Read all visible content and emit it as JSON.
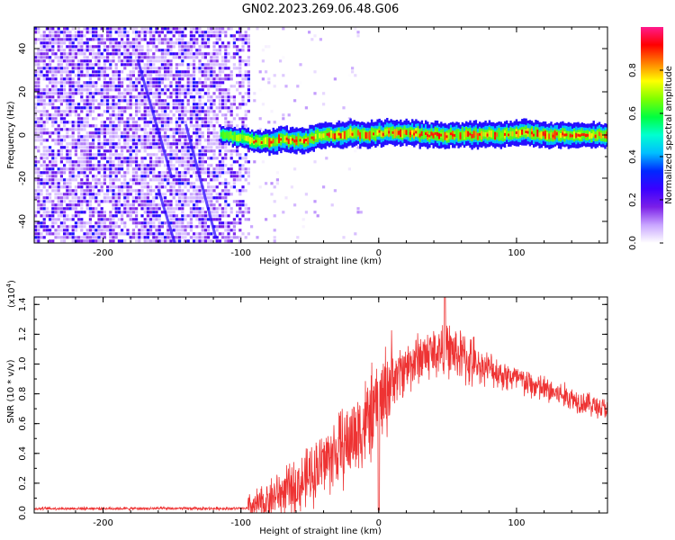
{
  "figure": {
    "title": "GN02.2023.269.06.48.G06"
  },
  "chart_data": [
    {
      "type": "heatmap",
      "xlabel": "Height of straight line (km)",
      "ylabel": "Frequency (Hz)",
      "xlim": [
        -250,
        166
      ],
      "ylim": [
        -50,
        50
      ],
      "xticks": [
        -200,
        -100,
        0,
        100
      ],
      "yticks": [
        -40,
        -20,
        0,
        20,
        40
      ],
      "colorbar": {
        "label": "Normalized spectral amplitude",
        "range": [
          0,
          1
        ],
        "ticks": [
          "0.0",
          "0.2",
          "0.4",
          "0.6",
          "0.8"
        ],
        "colormap": [
          "#ffffff",
          "#c9a6ff",
          "#7b1fe8",
          "#3a00ff",
          "#0028ff",
          "#00bfff",
          "#00ffd0",
          "#00ff40",
          "#7fff00",
          "#ffff00",
          "#ff8000",
          "#ff0000",
          "#ff1a8c"
        ]
      },
      "features": {
        "noise_region_x": [
          -250,
          -95
        ],
        "carrier_start_x": -115,
        "carrier_end_x": 166,
        "carrier_freq_track": [
          [
            -115,
            0
          ],
          [
            -100,
            -1
          ],
          [
            -90,
            -3
          ],
          [
            -80,
            -3
          ],
          [
            -70,
            -2
          ],
          [
            -60,
            -3
          ],
          [
            -50,
            -2
          ],
          [
            -40,
            0
          ],
          [
            -30,
            0
          ],
          [
            -20,
            1
          ],
          [
            -10,
            0
          ],
          [
            0,
            1
          ],
          [
            20,
            1
          ],
          [
            40,
            0
          ],
          [
            60,
            0
          ],
          [
            80,
            0
          ],
          [
            100,
            1
          ],
          [
            120,
            0
          ],
          [
            140,
            0
          ],
          [
            166,
            0
          ]
        ],
        "carrier_peak_amplitude": 0.9
      }
    },
    {
      "type": "line",
      "xlabel": "Height of straight line (km)",
      "ylabel": "SNR (10 * v/v)",
      "scale_label": "(x10",
      "scale_exponent": "4",
      "scale_suffix": ")",
      "xlim": [
        -250,
        166
      ],
      "ylim": [
        0,
        1.45
      ],
      "xticks": [
        -200,
        -100,
        0,
        100
      ],
      "yticks": [
        "0.0",
        "0.2",
        "0.4",
        "0.6",
        "0.8",
        "1.0",
        "1.2",
        "1.4"
      ],
      "series": [
        {
          "color": "#ee3333",
          "trend": [
            [
              -250,
              0.03
            ],
            [
              -200,
              0.03
            ],
            [
              -150,
              0.03
            ],
            [
              -110,
              0.03
            ],
            [
              -95,
              0.03
            ],
            [
              -85,
              0.06
            ],
            [
              -75,
              0.12
            ],
            [
              -65,
              0.15
            ],
            [
              -55,
              0.2
            ],
            [
              -45,
              0.3
            ],
            [
              -35,
              0.38
            ],
            [
              -25,
              0.45
            ],
            [
              -15,
              0.55
            ],
            [
              -8,
              0.62
            ],
            [
              0,
              0.72
            ],
            [
              5,
              0.82
            ],
            [
              10,
              0.9
            ],
            [
              20,
              0.98
            ],
            [
              30,
              1.05
            ],
            [
              40,
              1.08
            ],
            [
              50,
              1.1
            ],
            [
              60,
              1.05
            ],
            [
              70,
              1.0
            ],
            [
              80,
              0.97
            ],
            [
              90,
              0.93
            ],
            [
              100,
              0.9
            ],
            [
              110,
              0.86
            ],
            [
              120,
              0.83
            ],
            [
              130,
              0.8
            ],
            [
              140,
              0.77
            ],
            [
              150,
              0.74
            ],
            [
              160,
              0.71
            ],
            [
              166,
              0.7
            ]
          ],
          "peak": [
            48,
            1.45
          ],
          "dip": [
            0,
            0.02
          ]
        }
      ]
    }
  ]
}
